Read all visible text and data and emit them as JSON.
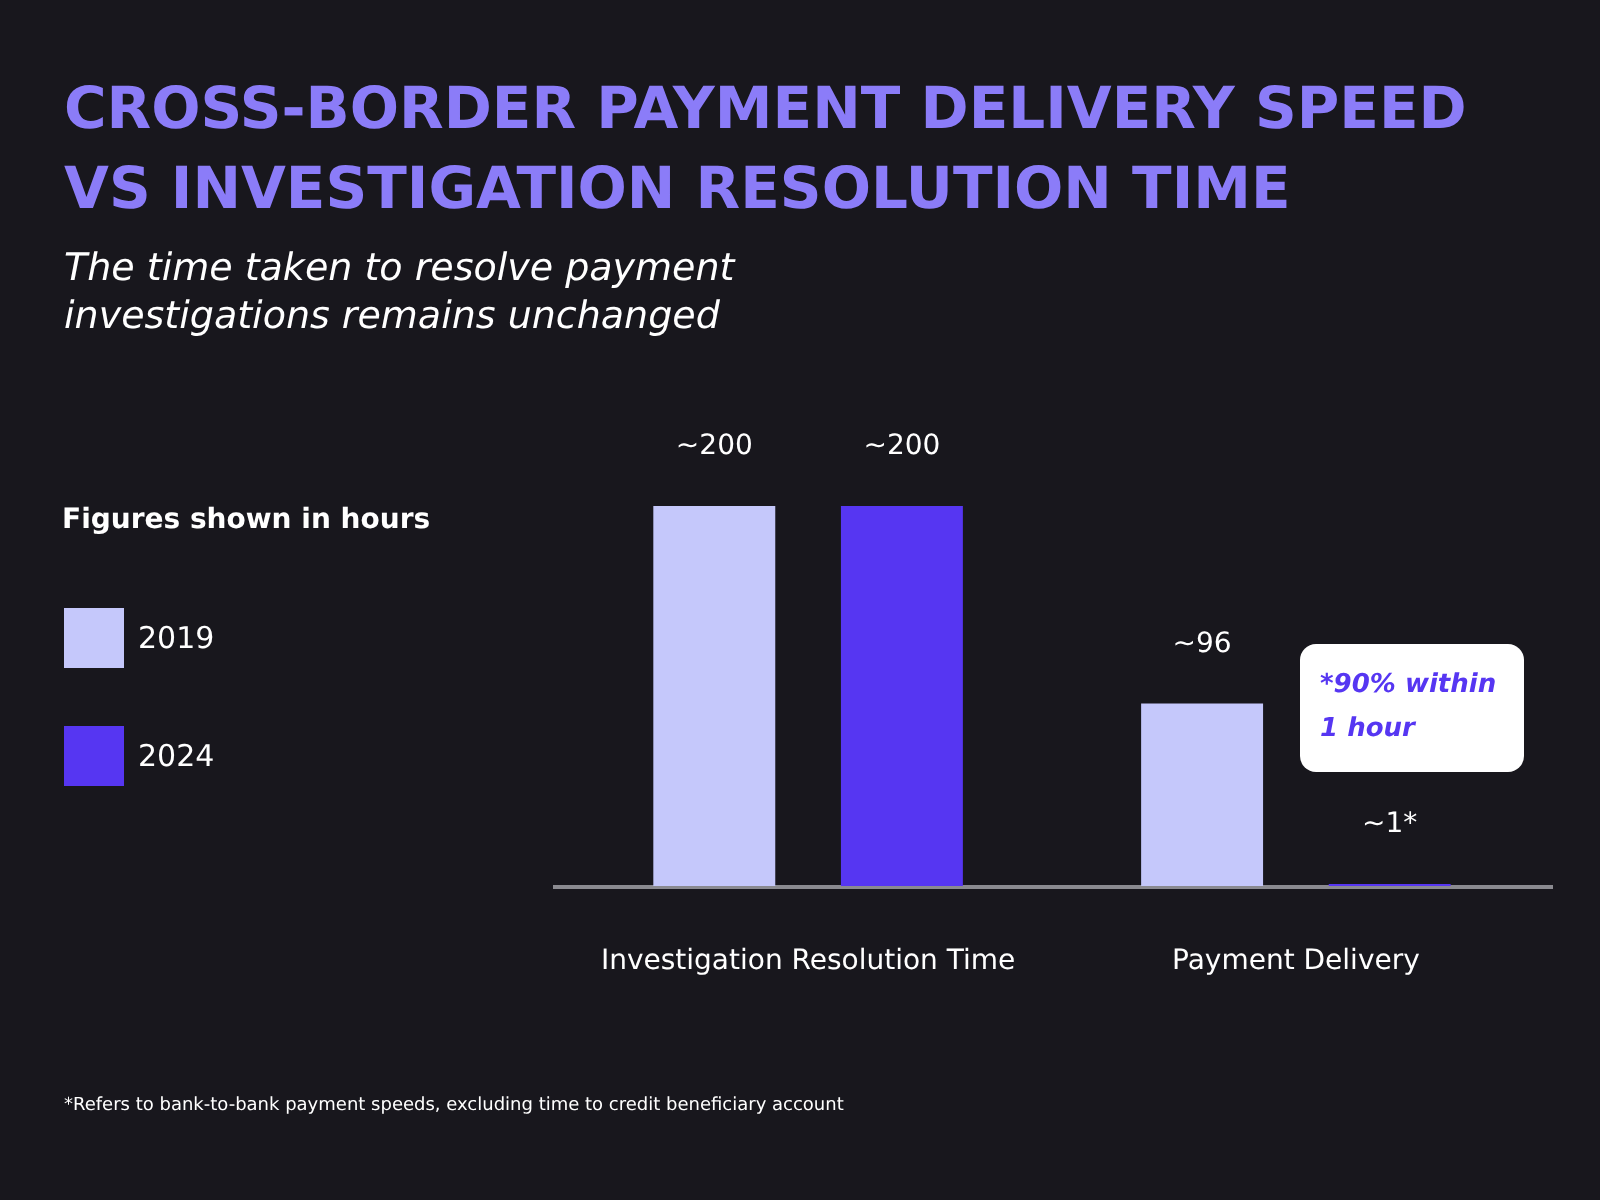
{
  "chart_data": {
    "type": "bar",
    "title": "CROSS-BORDER PAYMENT DELIVERY SPEED VS INVESTIGATION RESOLUTION TIME",
    "subtitle": "The time taken to resolve payment investigations remains unchanged",
    "legend_title": "Figures shown in hours",
    "categories": [
      "Investigation Resolution Time",
      "Payment Delivery"
    ],
    "series": [
      {
        "name": "2019",
        "color": "#c5c8fb",
        "values": [
          200,
          96
        ],
        "value_labels": [
          "~200",
          "~96"
        ]
      },
      {
        "name": "2024",
        "color": "#5636f2",
        "values": [
          200,
          1
        ],
        "value_labels": [
          "~200",
          "~1*"
        ]
      }
    ],
    "annotations": [
      "*90% within 1 hour",
      "*Refers to bank-to-bank payment speeds, excluding time to credit beneficiary account"
    ],
    "legend": "left"
  }
}
